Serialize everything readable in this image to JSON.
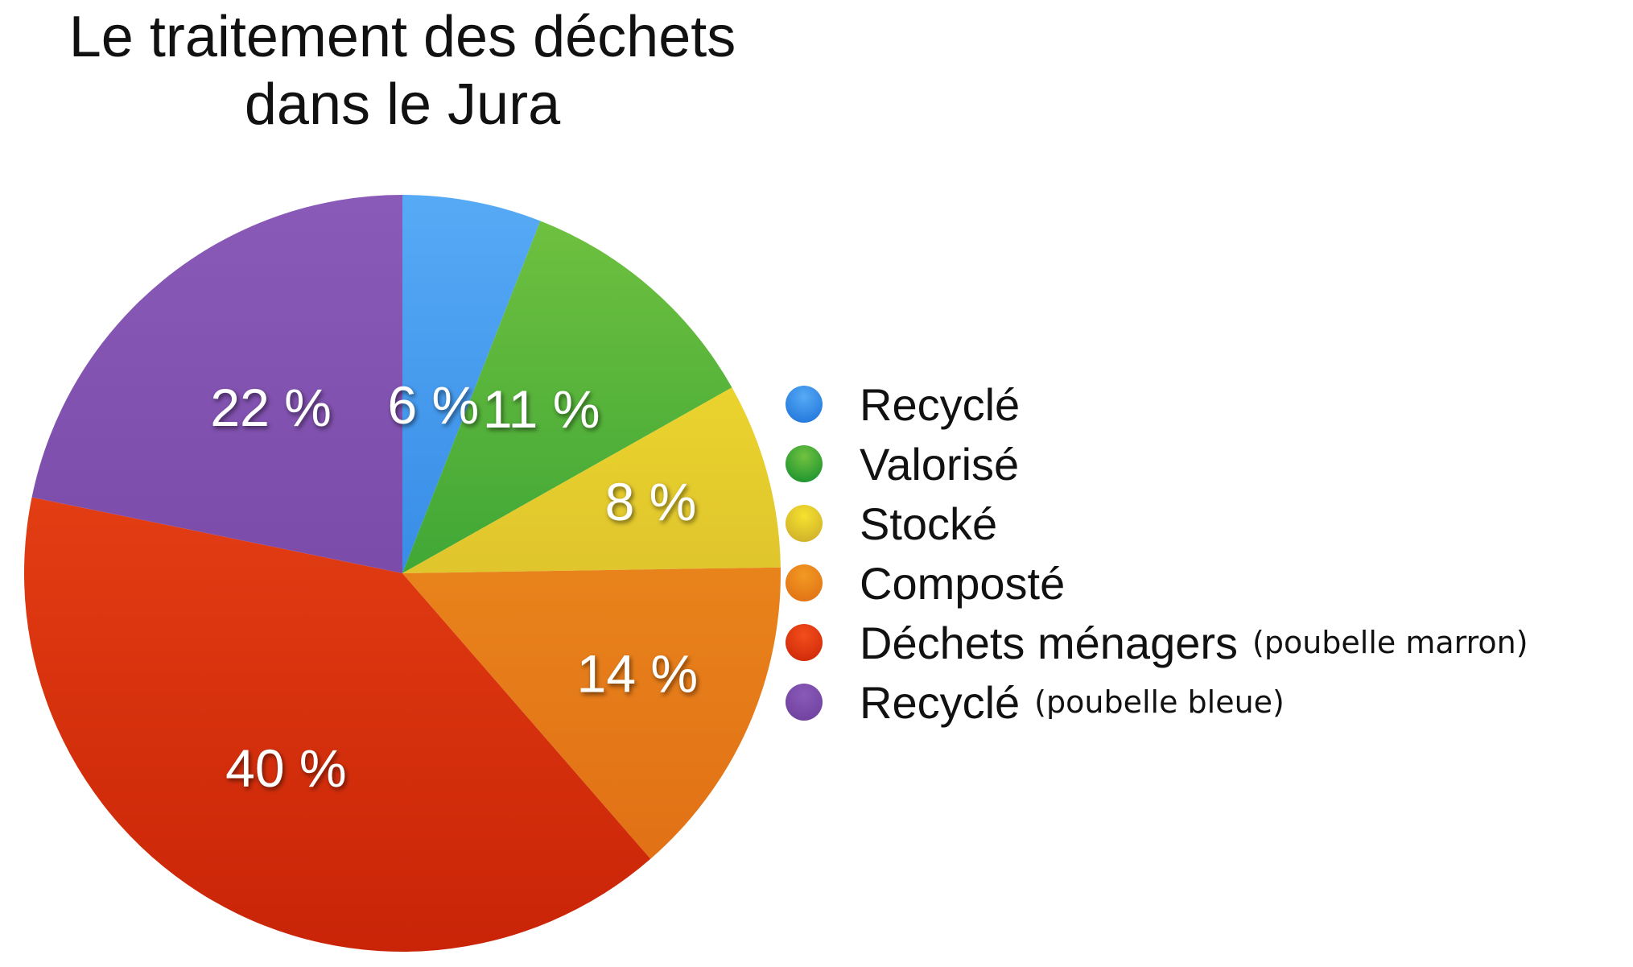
{
  "chart_data": {
    "type": "pie",
    "title_lines": [
      "Le traitement des déchets",
      "dans le Jura"
    ],
    "slices": [
      {
        "label": "Recyclé",
        "note": "",
        "value": 6,
        "display": "6 %",
        "color_top": "#56aaf5",
        "color_bottom": "#1a6fd8"
      },
      {
        "label": "Valorisé",
        "note": "",
        "value": 11,
        "display": "11 %",
        "color_top": "#72c240",
        "color_bottom": "#0e8c2c"
      },
      {
        "label": "Stocké",
        "note": "",
        "value": 8,
        "display": "8 %",
        "color_top": "#f6e22f",
        "color_bottom": "#c9a82a"
      },
      {
        "label": "Composté",
        "note": "",
        "value": 14,
        "display": "14 %",
        "color_top": "#f29a22",
        "color_bottom": "#df6b14"
      },
      {
        "label": "Déchets ménagers",
        "note": "(poubelle marron)",
        "value": 40,
        "display": "40 %",
        "color_top": "#f34e1b",
        "color_bottom": "#c92407"
      },
      {
        "label": "Recyclé",
        "note": "(poubelle bleue)",
        "value": 22,
        "display": "22 %",
        "color_top": "#8a5ab8",
        "color_bottom": "#6b3d9a"
      }
    ],
    "start_angle_deg": 0,
    "direction": "clockwise",
    "legend_position": "right"
  }
}
